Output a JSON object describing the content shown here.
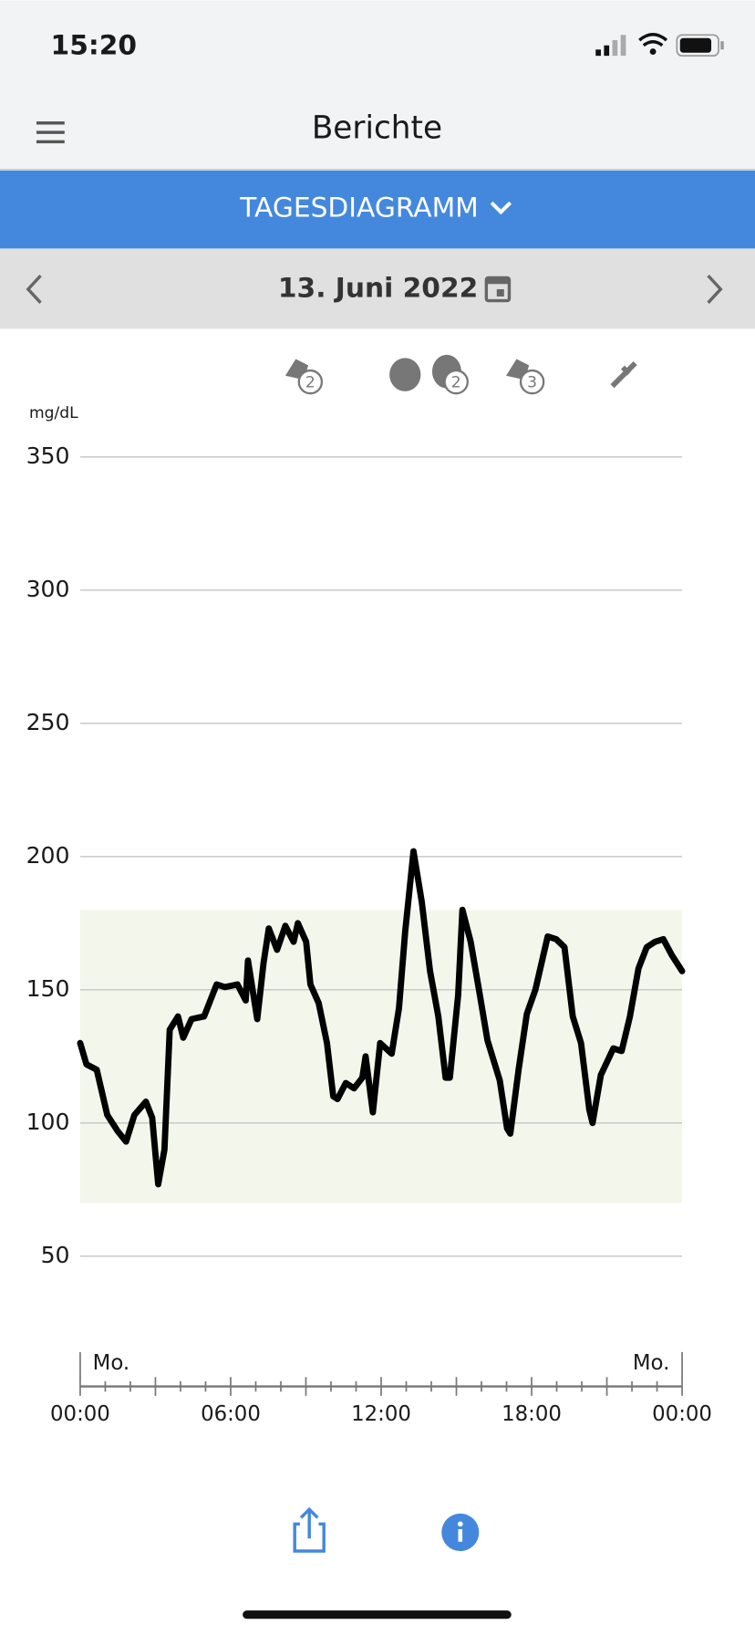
{
  "status_bar": {
    "time": "15:20"
  },
  "header": {
    "title": "Berichte"
  },
  "tab": {
    "label": "TAGESDIAGRAMM"
  },
  "date_nav": {
    "date": "13. Juni 2022"
  },
  "chart_data": {
    "type": "line",
    "ylabel": "mg/dL",
    "event_badges": [
      "2",
      "2",
      "3"
    ],
    "day_labels": [
      "Mo.",
      "Mo."
    ],
    "target_range": [
      70,
      180
    ],
    "xlim": [
      0,
      24
    ],
    "xticks": [
      {
        "value": 0,
        "label": "00:00"
      },
      {
        "value": 6,
        "label": "06:00"
      },
      {
        "value": 12,
        "label": "12:00"
      },
      {
        "value": 18,
        "label": "18:00"
      },
      {
        "value": 24,
        "label": "00:00"
      }
    ],
    "xminor_ticks": [
      1,
      2,
      3,
      4,
      5,
      7,
      8,
      9,
      10,
      11,
      13,
      14,
      15,
      16,
      17,
      19,
      20,
      21,
      22,
      23
    ],
    "ylim": [
      50,
      350
    ],
    "yticks": [
      50,
      100,
      150,
      200,
      250,
      300,
      350
    ],
    "grid": true,
    "x": [
      0.0,
      0.25,
      0.66,
      1.08,
      1.49,
      1.83,
      2.16,
      2.62,
      2.87,
      3.11,
      3.36,
      3.57,
      3.9,
      4.11,
      4.44,
      4.94,
      5.44,
      5.77,
      6.27,
      6.6,
      6.69,
      7.06,
      7.31,
      7.52,
      7.85,
      8.18,
      8.51,
      8.68,
      9.01,
      9.18,
      9.51,
      9.84,
      10.09,
      10.26,
      10.59,
      10.92,
      11.25,
      11.38,
      11.67,
      11.96,
      12.42,
      12.71,
      12.96,
      13.29,
      13.62,
      13.95,
      14.28,
      14.57,
      14.74,
      15.07,
      15.24,
      15.57,
      15.9,
      16.24,
      16.73,
      17.02,
      17.15,
      17.48,
      17.81,
      18.15,
      18.64,
      18.98,
      19.31,
      19.64,
      19.97,
      20.3,
      20.43,
      20.76,
      21.26,
      21.59,
      21.92,
      22.26,
      22.59,
      22.92,
      23.25,
      23.59,
      24.0
    ],
    "series": [
      {
        "color": "#000000",
        "values": [
          130,
          122,
          120,
          103,
          97,
          93,
          103,
          108,
          102,
          77,
          90,
          135,
          140,
          132,
          139,
          140,
          152,
          151,
          152,
          146,
          161,
          139,
          160,
          173,
          165,
          174,
          168,
          175,
          168,
          152,
          145,
          130,
          110,
          109,
          115,
          113,
          117,
          125,
          104,
          130,
          126,
          143,
          172,
          202,
          183,
          157,
          140,
          117,
          117,
          148,
          180,
          168,
          150,
          131,
          116,
          98,
          96,
          120,
          141,
          150,
          170,
          169,
          166,
          140,
          130,
          105,
          100,
          118,
          128,
          127,
          140,
          158,
          166,
          168,
          169,
          163,
          157
        ]
      }
    ]
  }
}
